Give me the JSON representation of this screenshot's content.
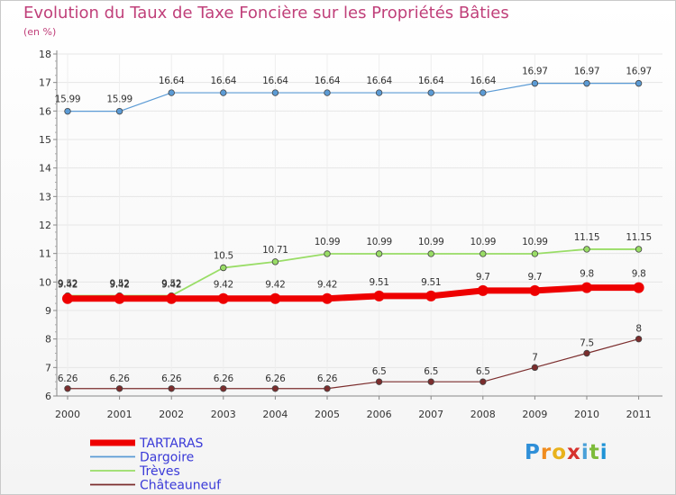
{
  "chart_data": {
    "type": "line",
    "title": "Evolution du Taux de Taxe Foncière sur les Propriétés Bâties",
    "subtitle": "(en %)",
    "xlabel": "",
    "ylabel": "",
    "ylim": [
      6,
      18
    ],
    "yticks": [
      6,
      7,
      8,
      9,
      10,
      11,
      12,
      13,
      14,
      15,
      16,
      17,
      18
    ],
    "categories": [
      "2000",
      "2001",
      "2002",
      "2003",
      "2004",
      "2005",
      "2006",
      "2007",
      "2008",
      "2009",
      "2010",
      "2011"
    ],
    "series": [
      {
        "name": "TARTARAS",
        "color": "#ee0000",
        "values": [
          9.42,
          9.42,
          9.42,
          9.42,
          9.42,
          9.42,
          9.51,
          9.51,
          9.7,
          9.7,
          9.8,
          9.8
        ],
        "labels": [
          "9.42",
          "9.42",
          "9.42",
          "9.42",
          "9.42",
          "9.42",
          "9.51",
          "9.51",
          "9.7",
          "9.7",
          "9.8",
          "9.8"
        ]
      },
      {
        "name": "Dargoire",
        "color": "#5b9bd5",
        "values": [
          15.99,
          15.99,
          16.64,
          16.64,
          16.64,
          16.64,
          16.64,
          16.64,
          16.64,
          16.97,
          16.97,
          16.97
        ],
        "labels": [
          "15.99",
          "15.99",
          "16.64",
          "16.64",
          "16.64",
          "16.64",
          "16.64",
          "16.64",
          "16.64",
          "16.97",
          "16.97",
          "16.97"
        ]
      },
      {
        "name": "Trèves",
        "color": "#99dd66",
        "values": [
          9.52,
          9.52,
          9.52,
          10.5,
          10.71,
          10.99,
          10.99,
          10.99,
          10.99,
          10.99,
          11.15,
          11.15
        ],
        "labels": [
          "9.52",
          "9.52",
          "9.52",
          "10.5",
          "10.71",
          "10.99",
          "10.99",
          "10.99",
          "10.99",
          "10.99",
          "11.15",
          "11.15"
        ]
      },
      {
        "name": "Châteauneuf",
        "color": "#7b2d2d",
        "values": [
          6.26,
          6.26,
          6.26,
          6.26,
          6.26,
          6.26,
          6.5,
          6.5,
          6.5,
          7,
          7.5,
          8
        ],
        "labels": [
          "6.26",
          "6.26",
          "6.26",
          "6.26",
          "6.26",
          "6.26",
          "6.5",
          "6.5",
          "6.5",
          "7",
          "7.5",
          "8"
        ]
      }
    ],
    "legend_position": "bottom-left"
  },
  "logo": {
    "text": "Proxiti",
    "letters": [
      "P",
      "r",
      "o",
      "x",
      "i",
      "t",
      "i"
    ],
    "colors": [
      "#2f8fd8",
      "#f08c1e",
      "#e8b21c",
      "#d6322e",
      "#4aa0d8",
      "#7dbb3a",
      "#1f93d6"
    ]
  }
}
